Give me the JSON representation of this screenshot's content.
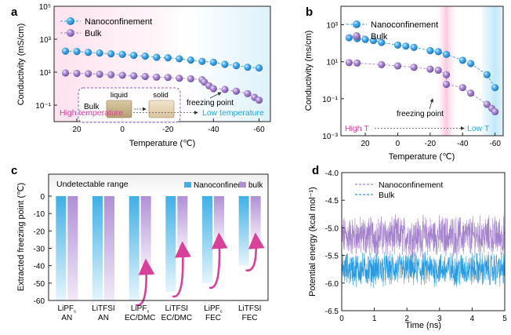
{
  "colors": {
    "nano": "#2b9be0",
    "bulk": "#a583cc",
    "pink_text": "#d9409a",
    "blue_text": "#2aa6d9",
    "arrow": "#d9409a"
  },
  "chart_data": [
    {
      "panel": "a",
      "type": "scatter",
      "xlabel": "Temperature (℃)",
      "ylabel": "Conductivity (mS/cm)",
      "xlim": [
        30,
        -65
      ],
      "x_ticks": [
        "20",
        "0",
        "-20",
        "-40",
        "-60"
      ],
      "y_scale": "log",
      "ylim": [
        0.01,
        100000
      ],
      "y_ticks": [
        "10⁻¹",
        "10¹",
        "10³",
        "10⁵"
      ],
      "series": [
        {
          "name": "Nanoconfinement",
          "x": [
            25,
            20,
            15,
            10,
            5,
            0,
            -5,
            -10,
            -15,
            -20,
            -25,
            -30,
            -35,
            -40,
            -45,
            -50,
            -55,
            -60
          ],
          "y": [
            190,
            180,
            160,
            145,
            130,
            120,
            105,
            95,
            80,
            75,
            65,
            55,
            45,
            40,
            30,
            25,
            20,
            18
          ]
        },
        {
          "name": "Bulk",
          "x": [
            25,
            20,
            15,
            10,
            5,
            0,
            -5,
            -10,
            -15,
            -20,
            -25,
            -30,
            -35,
            -36,
            -38,
            -40,
            -45,
            -50,
            -55,
            -58,
            -60
          ],
          "y": [
            9,
            8.5,
            8,
            7.5,
            7,
            6.5,
            6,
            5.5,
            5,
            4.8,
            4.3,
            4,
            3.5,
            2.5,
            1.5,
            1,
            0.9,
            0.7,
            0.5,
            0.3,
            0.2
          ]
        }
      ],
      "annotations": [
        "freezing point",
        "High temperature",
        "Low temperature"
      ],
      "inset": {
        "label": "Bulk",
        "state1": "liquid",
        "state2": "solid"
      }
    },
    {
      "panel": "b",
      "type": "scatter",
      "xlabel": "Temperature (℃)",
      "ylabel": "Conductivity (ms/cm)",
      "xlim": [
        35,
        -65
      ],
      "x_ticks": [
        "20",
        "0",
        "-20",
        "-40",
        "-60"
      ],
      "y_scale": "log",
      "ylim": [
        0.001,
        10000
      ],
      "y_ticks": [
        "10⁻³",
        "10⁻¹",
        "10¹",
        "10³"
      ],
      "series": [
        {
          "name": "Nanoconfinement",
          "x": [
            30,
            25,
            20,
            15,
            10,
            0,
            -5,
            -10,
            -20,
            -25,
            -30,
            -40,
            -45,
            -55,
            -60
          ],
          "y": [
            200,
            180,
            160,
            140,
            110,
            80,
            70,
            60,
            40,
            35,
            25,
            12,
            8,
            2,
            0.4
          ]
        },
        {
          "name": "Bulk",
          "x": [
            30,
            25,
            10,
            0,
            -10,
            -20,
            -25,
            -30,
            -30,
            -40,
            -45,
            -55,
            -58,
            -60
          ],
          "y": [
            9,
            8.5,
            7,
            6,
            5,
            4,
            3.5,
            2,
            0.6,
            0.4,
            0.2,
            0.05,
            0.03,
            0.02
          ]
        }
      ],
      "annotations": [
        "freezing point",
        "High T",
        "Low T"
      ]
    },
    {
      "panel": "c",
      "type": "bar",
      "ylabel": "Extracted freezing point (℃)",
      "ylim": [
        -60,
        0
      ],
      "y_ticks": [
        "0",
        "-10",
        "-20",
        "-30",
        "-40",
        "-50",
        "-60"
      ],
      "categories": [
        [
          "LiPF",
          "₆",
          "AN"
        ],
        [
          "LiTFSI",
          "",
          "AN"
        ],
        [
          "LiPF",
          "₆",
          "EC/DMC"
        ],
        [
          "LiTFSI",
          "",
          "EC/DMC"
        ],
        [
          "LiPF",
          "₆",
          "FEC"
        ],
        [
          "LiTFSI",
          "",
          "FEC"
        ]
      ],
      "series": [
        {
          "name": "Nanoconfined",
          "values": [
            -60,
            -60,
            -60,
            -55,
            -50,
            -40
          ]
        },
        {
          "name": "bulk",
          "values": [
            -60,
            -60,
            -40,
            -30,
            -25,
            -25
          ]
        }
      ],
      "band_label": "Undetectable range"
    },
    {
      "panel": "d",
      "type": "line",
      "xlabel": "Time (ns)",
      "ylabel": "Potential energy (kcal mol⁻¹)",
      "xlim": [
        0,
        5
      ],
      "ylim": [
        -6.5,
        -4.0
      ],
      "x_ticks": [
        "0",
        "1",
        "2",
        "3",
        "4",
        "5"
      ],
      "y_ticks": [
        "-4.0",
        "-4.5",
        "-5.0",
        "-5.5",
        "-6.0",
        "-6.5"
      ],
      "series": [
        {
          "name": "Nanoconfinement",
          "mean": -5.15,
          "min": -5.55,
          "max": -4.6
        },
        {
          "name": "Bulk",
          "mean": -5.75,
          "min": -6.15,
          "max": -5.35
        }
      ]
    }
  ]
}
